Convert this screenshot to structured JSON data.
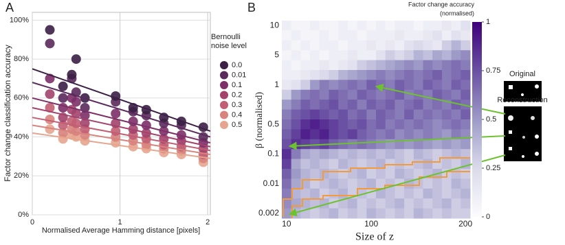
{
  "chart_data": [
    {
      "type": "scatter",
      "panel_label": "A",
      "x_label": "Normalised Average Hamming distance [pixels]",
      "y_label": "Factor change classification accuracy",
      "legend_title": [
        "Bernoulli",
        "noise level"
      ],
      "x": [
        0.2,
        0.35,
        0.45,
        0.5,
        0.6,
        0.95,
        1.15,
        1.3,
        1.5,
        1.7,
        1.95
      ],
      "xlim": [
        0,
        2.03
      ],
      "xticks": [
        0,
        1,
        2
      ],
      "ylim": [
        0,
        104
      ],
      "yticks": [
        {
          "value": 0,
          "label": "0%"
        },
        {
          "value": 20,
          "label": "20%"
        },
        {
          "value": 40,
          "label": "40%"
        },
        {
          "value": 60,
          "label": "60%"
        },
        {
          "value": 80,
          "label": "80%"
        },
        {
          "value": 100,
          "label": "100%"
        }
      ],
      "grid": true,
      "series": [
        {
          "name": "0.0",
          "color": "#3b1f45",
          "values": [
            95,
            66,
            72,
            80,
            60,
            61,
            55,
            54,
            50,
            48,
            45
          ],
          "trend": [
            75,
            43
          ]
        },
        {
          "name": "0.01",
          "color": "#5a2a5c",
          "values": [
            88,
            60,
            70,
            63,
            55,
            58,
            53,
            51,
            47,
            46,
            40
          ],
          "trend": [
            68,
            40
          ]
        },
        {
          "name": "0.1",
          "color": "#7d2f68",
          "values": [
            70,
            55,
            60,
            58,
            51,
            52,
            48,
            46,
            43,
            41,
            37
          ],
          "trend": [
            60,
            37
          ]
        },
        {
          "name": "0.2",
          "color": "#a3436c",
          "values": [
            62,
            50,
            54,
            52,
            47,
            47,
            44,
            42,
            39,
            38,
            34
          ],
          "trend": [
            55,
            35
          ]
        },
        {
          "name": "0.3",
          "color": "#c25e73",
          "values": [
            55,
            46,
            48,
            47,
            44,
            43,
            41,
            39,
            36,
            35,
            31
          ],
          "trend": [
            50,
            33
          ]
        },
        {
          "name": "0.4",
          "color": "#d8837d",
          "values": [
            49,
            42,
            44,
            43,
            41,
            40,
            38,
            36,
            34,
            33,
            29
          ],
          "trend": [
            46,
            31
          ]
        },
        {
          "name": "0.5",
          "color": "#e6a58e",
          "values": [
            44,
            39,
            41,
            40,
            38,
            37,
            35,
            34,
            32,
            31,
            27
          ],
          "trend": [
            42,
            29
          ]
        }
      ]
    },
    {
      "type": "heatmap",
      "panel_label": "B",
      "x_label": "Size of z",
      "y_label": "β (normalised)",
      "colorbar_title": [
        "Factor change accuracy",
        "(normalised)"
      ],
      "annotations": [
        "Original",
        "Reconstruction"
      ],
      "columns": [
        "10",
        null,
        null,
        null,
        null,
        null,
        null,
        null,
        null,
        "100",
        null,
        null,
        null,
        null,
        null,
        null,
        null,
        null,
        null,
        "200"
      ],
      "rows": [
        "10",
        null,
        null,
        "5",
        null,
        null,
        "1",
        null,
        null,
        null,
        "0.5",
        null,
        null,
        "0.1",
        null,
        null,
        "0.01",
        null,
        null,
        "0.002"
      ],
      "values": [
        [
          0.1,
          0.05,
          0.05,
          0.1,
          0.05,
          0.05,
          0.1,
          0.05,
          0.1,
          0.05,
          0.1,
          0.05,
          0.1,
          0.1,
          0.05,
          0.1,
          0.1,
          0.15,
          0.1,
          0.2
        ],
        [
          0.05,
          0.1,
          0.05,
          0.05,
          0.1,
          0.05,
          0.1,
          0.1,
          0.05,
          0.1,
          0.1,
          0.1,
          0.15,
          0.1,
          0.1,
          0.15,
          0.2,
          0.1,
          0.2,
          0.15
        ],
        [
          0.1,
          0.05,
          0.1,
          0.05,
          0.1,
          0.1,
          0.05,
          0.1,
          0.1,
          0.15,
          0.1,
          0.15,
          0.1,
          0.2,
          0.25,
          0.2,
          0.15,
          0.3,
          0.4,
          0.3
        ],
        [
          0.05,
          0.1,
          0.05,
          0.1,
          0.05,
          0.1,
          0.1,
          0.15,
          0.1,
          0.1,
          0.2,
          0.3,
          0.25,
          0.3,
          0.4,
          0.35,
          0.45,
          0.4,
          0.5,
          0.55
        ],
        [
          0.1,
          0.05,
          0.1,
          0.1,
          0.15,
          0.1,
          0.15,
          0.2,
          0.3,
          0.35,
          0.4,
          0.45,
          0.5,
          0.55,
          0.5,
          0.6,
          0.55,
          0.6,
          0.65,
          0.6
        ],
        [
          0.1,
          0.1,
          0.15,
          0.2,
          0.25,
          0.3,
          0.4,
          0.45,
          0.5,
          0.55,
          0.6,
          0.55,
          0.6,
          0.65,
          0.6,
          0.65,
          0.7,
          0.6,
          0.65,
          0.7
        ],
        [
          0.15,
          0.2,
          0.3,
          0.5,
          0.6,
          0.55,
          0.6,
          0.65,
          0.6,
          0.7,
          0.65,
          0.6,
          0.7,
          0.65,
          0.6,
          0.7,
          0.65,
          0.6,
          0.7,
          0.65
        ],
        [
          0.3,
          0.5,
          0.6,
          0.65,
          0.6,
          0.7,
          0.65,
          0.6,
          0.7,
          0.65,
          0.6,
          0.65,
          0.7,
          0.6,
          0.65,
          0.6,
          0.7,
          0.65,
          0.6,
          0.7
        ],
        [
          0.5,
          0.6,
          0.7,
          0.65,
          0.7,
          0.75,
          0.65,
          0.7,
          0.6,
          0.7,
          0.65,
          0.7,
          0.6,
          0.65,
          0.7,
          0.6,
          0.65,
          0.6,
          0.7,
          0.65
        ],
        [
          0.6,
          0.7,
          0.75,
          0.8,
          0.75,
          0.7,
          0.75,
          0.65,
          0.7,
          0.6,
          0.7,
          0.65,
          0.6,
          0.7,
          0.6,
          0.65,
          0.6,
          0.65,
          0.6,
          0.7
        ],
        [
          0.65,
          0.75,
          0.85,
          0.9,
          0.85,
          0.8,
          0.75,
          0.7,
          0.75,
          0.65,
          0.7,
          0.6,
          0.65,
          0.6,
          0.65,
          0.6,
          0.55,
          0.6,
          0.65,
          0.6
        ],
        [
          0.7,
          0.8,
          0.9,
          0.85,
          0.9,
          0.8,
          0.75,
          0.8,
          0.7,
          0.65,
          0.6,
          0.65,
          0.55,
          0.6,
          0.55,
          0.6,
          0.55,
          0.5,
          0.6,
          0.55
        ],
        [
          0.75,
          0.85,
          0.8,
          0.75,
          0.8,
          0.7,
          0.65,
          0.6,
          0.65,
          0.6,
          0.55,
          0.5,
          0.55,
          0.5,
          0.55,
          0.5,
          0.45,
          0.5,
          0.45,
          0.5
        ],
        [
          0.85,
          0.6,
          0.45,
          0.4,
          0.45,
          0.4,
          0.35,
          0.4,
          0.35,
          0.4,
          0.35,
          0.4,
          0.35,
          0.3,
          0.4,
          0.35,
          0.3,
          0.35,
          0.4,
          0.35
        ],
        [
          0.8,
          0.45,
          0.35,
          0.4,
          0.35,
          0.3,
          0.4,
          0.35,
          0.3,
          0.35,
          0.4,
          0.3,
          0.35,
          0.3,
          0.35,
          0.4,
          0.3,
          0.35,
          0.3,
          0.4
        ],
        [
          0.7,
          0.5,
          0.4,
          0.35,
          0.4,
          0.35,
          0.3,
          0.35,
          0.4,
          0.3,
          0.35,
          0.3,
          0.4,
          0.35,
          0.3,
          0.35,
          0.4,
          0.3,
          0.35,
          0.3
        ],
        [
          0.65,
          0.45,
          0.4,
          0.3,
          0.35,
          0.4,
          0.35,
          0.3,
          0.35,
          0.4,
          0.3,
          0.35,
          0.3,
          0.4,
          0.35,
          0.3,
          0.35,
          0.3,
          0.4,
          0.35
        ],
        [
          0.6,
          0.4,
          0.35,
          0.4,
          0.3,
          0.35,
          0.4,
          0.3,
          0.35,
          0.3,
          0.4,
          0.35,
          0.3,
          0.35,
          0.3,
          0.4,
          0.35,
          0.3,
          0.35,
          0.4
        ],
        [
          0.55,
          0.45,
          0.4,
          0.35,
          0.4,
          0.3,
          0.35,
          0.4,
          0.3,
          0.35,
          0.3,
          0.35,
          0.4,
          0.3,
          0.35,
          0.3,
          0.35,
          0.4,
          0.3,
          0.35
        ],
        [
          0.5,
          0.4,
          0.35,
          0.3,
          0.35,
          0.4,
          0.3,
          0.35,
          0.3,
          0.4,
          0.35,
          0.3,
          0.35,
          0.3,
          0.4,
          0.35,
          0.3,
          0.35,
          0.3,
          0.3
        ]
      ],
      "clim": [
        0,
        1
      ],
      "cticks": [
        0,
        0.25,
        0.5,
        0.75,
        1
      ],
      "colormap": [
        "#fcfbfd",
        "#dadaeb",
        "#9e9ac8",
        "#6a51a3",
        "#3f007d"
      ]
    }
  ]
}
